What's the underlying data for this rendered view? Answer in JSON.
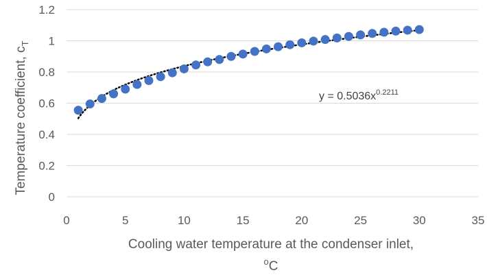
{
  "chart_data": {
    "type": "scatter",
    "xlabel": "Cooling water temperature at the condenser inlet,",
    "xlabel_line2_prefix": "o",
    "xlabel_line2_unit": "C",
    "ylabel": "Temperature coefficient, c",
    "ylabel_subscript": "T",
    "xlim": [
      0,
      35
    ],
    "ylim": [
      0,
      1.2
    ],
    "x_ticks": [
      "0",
      "5",
      "10",
      "15",
      "20",
      "25",
      "30",
      "35"
    ],
    "y_ticks": [
      "0",
      "0.2",
      "0.4",
      "0.6",
      "0.8",
      "1",
      "1.2"
    ],
    "grid": "horizontal",
    "series": [
      {
        "marker_color": "#4472C4",
        "x": [
          1,
          2,
          3,
          4,
          5,
          6,
          7,
          8,
          9,
          10,
          11,
          12,
          13,
          14,
          15,
          16,
          17,
          18,
          19,
          20,
          21,
          22,
          23,
          24,
          25,
          26,
          27,
          28,
          29,
          30
        ],
        "y": [
          0.555,
          0.595,
          0.63,
          0.66,
          0.69,
          0.72,
          0.745,
          0.77,
          0.795,
          0.82,
          0.845,
          0.865,
          0.88,
          0.9,
          0.915,
          0.932,
          0.948,
          0.962,
          0.975,
          0.987,
          0.998,
          1.008,
          1.018,
          1.028,
          1.038,
          1.047,
          1.055,
          1.062,
          1.068,
          1.072
        ]
      }
    ],
    "trendline": {
      "type": "power",
      "coefficient": 0.5036,
      "exponent": 0.2211,
      "x_range": [
        1,
        30
      ],
      "style": "dotted",
      "color": "#000000",
      "equation_text": "y = 0.5036x",
      "equation_exponent": "0.2211"
    }
  }
}
